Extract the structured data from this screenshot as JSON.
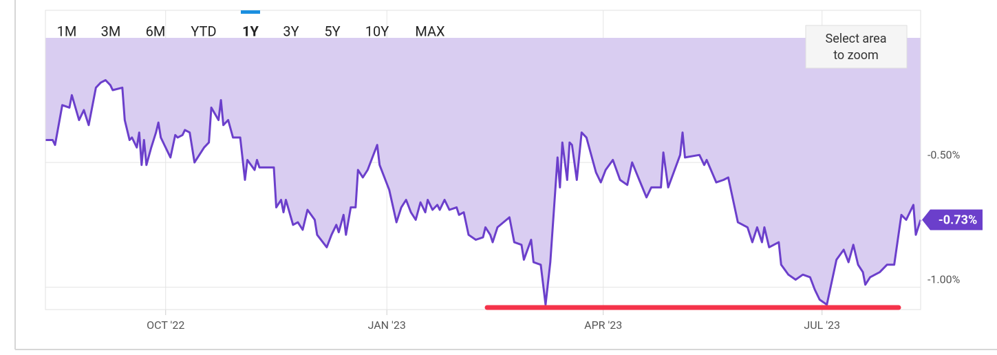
{
  "chart_data": {
    "type": "area",
    "range_buttons": [
      "1M",
      "3M",
      "6M",
      "YTD",
      "1Y",
      "3Y",
      "5Y",
      "10Y",
      "MAX"
    ],
    "selected_range": "1Y",
    "zoom_hint": [
      "Select area",
      "to zoom"
    ],
    "color": "#6b3fcb",
    "fill_color": "#d9cdf1",
    "grid": true,
    "xlim": [
      0,
      364
    ],
    "xticks": [
      {
        "value": 50,
        "label": "OCT '22"
      },
      {
        "value": 142,
        "label": "JAN '23"
      },
      {
        "value": 232,
        "label": "APR '23"
      },
      {
        "value": 323,
        "label": "JUL '23"
      }
    ],
    "ylim": [
      -1.09,
      0.11
    ],
    "yticks": [
      {
        "value": -0.5,
        "label": "-0.50%"
      },
      {
        "value": -1.0,
        "label": "-1.00%"
      }
    ],
    "current_value": -0.73,
    "current_value_label": "-0.73%",
    "x": [
      0,
      3,
      4,
      7,
      10,
      11,
      14,
      16,
      18,
      21,
      23,
      25,
      27,
      28,
      32,
      33,
      35,
      36,
      38,
      39,
      40,
      41,
      42,
      44,
      46,
      47,
      48,
      52,
      54,
      55,
      57,
      58,
      60,
      62,
      66,
      68,
      69,
      72,
      73,
      74,
      76,
      78,
      81,
      83,
      84,
      87,
      88,
      89,
      95,
      96,
      98,
      99,
      100,
      103,
      105,
      107,
      109,
      112,
      113,
      117,
      119,
      121,
      122,
      124,
      125,
      127,
      129,
      130,
      132,
      134,
      138,
      139,
      143,
      146,
      148,
      150,
      152,
      154,
      156,
      158,
      159,
      161,
      163,
      164,
      166,
      168,
      171,
      172,
      174,
      176,
      179,
      182,
      183,
      185,
      186,
      188,
      193,
      195,
      198,
      199,
      202,
      203,
      206,
      208,
      210,
      213,
      214,
      215,
      217,
      218,
      219,
      221,
      223,
      225,
      229,
      231,
      233,
      236,
      239,
      242,
      244,
      247,
      250,
      252,
      256,
      257,
      259,
      264,
      265,
      266,
      272,
      274,
      275,
      279,
      282,
      284,
      288,
      292,
      294,
      296,
      298,
      299,
      301,
      305,
      306,
      309,
      312,
      315,
      318,
      320,
      322,
      325,
      329,
      332,
      334,
      336,
      338,
      340,
      341,
      343,
      347,
      350,
      353,
      356,
      358,
      361,
      362,
      364
    ],
    "values": [
      -0.41,
      -0.41,
      -0.43,
      -0.27,
      -0.28,
      -0.23,
      -0.33,
      -0.29,
      -0.35,
      -0.2,
      -0.18,
      -0.17,
      -0.19,
      -0.21,
      -0.2,
      -0.33,
      -0.41,
      -0.4,
      -0.44,
      -0.38,
      -0.51,
      -0.41,
      -0.51,
      -0.44,
      -0.38,
      -0.34,
      -0.4,
      -0.48,
      -0.39,
      -0.4,
      -0.39,
      -0.37,
      -0.38,
      -0.5,
      -0.44,
      -0.42,
      -0.28,
      -0.33,
      -0.25,
      -0.35,
      -0.33,
      -0.4,
      -0.4,
      -0.57,
      -0.49,
      -0.53,
      -0.49,
      -0.52,
      -0.52,
      -0.68,
      -0.65,
      -0.7,
      -0.65,
      -0.75,
      -0.74,
      -0.77,
      -0.69,
      -0.73,
      -0.79,
      -0.84,
      -0.79,
      -0.75,
      -0.78,
      -0.71,
      -0.79,
      -0.68,
      -0.68,
      -0.53,
      -0.56,
      -0.53,
      -0.43,
      -0.51,
      -0.61,
      -0.74,
      -0.68,
      -0.65,
      -0.7,
      -0.73,
      -0.66,
      -0.7,
      -0.65,
      -0.69,
      -0.67,
      -0.69,
      -0.65,
      -0.69,
      -0.68,
      -0.71,
      -0.7,
      -0.79,
      -0.81,
      -0.8,
      -0.76,
      -0.79,
      -0.82,
      -0.76,
      -0.72,
      -0.82,
      -0.83,
      -0.89,
      -0.81,
      -0.9,
      -0.91,
      -1.07,
      -0.9,
      -0.48,
      -0.6,
      -0.42,
      -0.57,
      -0.42,
      -0.43,
      -0.57,
      -0.38,
      -0.4,
      -0.54,
      -0.58,
      -0.53,
      -0.49,
      -0.57,
      -0.59,
      -0.5,
      -0.57,
      -0.64,
      -0.6,
      -0.6,
      -0.46,
      -0.6,
      -0.47,
      -0.38,
      -0.48,
      -0.47,
      -0.51,
      -0.49,
      -0.58,
      -0.57,
      -0.56,
      -0.74,
      -0.76,
      -0.82,
      -0.76,
      -0.82,
      -0.76,
      -0.84,
      -0.82,
      -0.91,
      -0.95,
      -0.97,
      -0.95,
      -0.96,
      -1.01,
      -1.05,
      -1.07,
      -0.89,
      -0.85,
      -0.9,
      -0.83,
      -0.91,
      -0.94,
      -0.99,
      -0.96,
      -0.94,
      -0.91,
      -0.91,
      -0.71,
      -0.73,
      -0.67,
      -0.79,
      -0.73
    ]
  }
}
